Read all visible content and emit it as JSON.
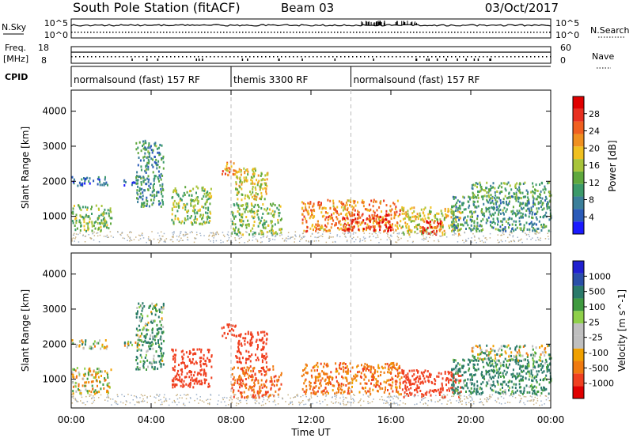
{
  "header": {
    "station": "South Pole Station (fitACF)",
    "beam": "Beam 03",
    "date": "03/Oct/2017"
  },
  "panels": {
    "nsky_label": "N.Sky",
    "nsearch_label": "N.Search",
    "nsky_ticks": [
      "10^5",
      "10^0"
    ],
    "freq_label": "Freq.",
    "freq_unit": "[MHz]",
    "freq_ticks": [
      "18",
      "8"
    ],
    "nave_label": "Nave",
    "nave_ticks": [
      "60",
      "0"
    ],
    "cpid_label": "CPID",
    "cpid_segments": [
      {
        "label": "normalsound (fast) 157 RF",
        "start_h": 0,
        "end_h": 8
      },
      {
        "label": "themis 3300 RF",
        "start_h": 8,
        "end_h": 14
      },
      {
        "label": "normalsound (fast) 157 RF",
        "start_h": 14,
        "end_h": 24
      }
    ]
  },
  "colors": {
    "power": [
      "#1a1aff",
      "#2a5ab8",
      "#3b7f9a",
      "#3c9a6a",
      "#5fa83e",
      "#a8c43a",
      "#f0c020",
      "#f09020",
      "#f06020",
      "#e83020",
      "#e00000"
    ],
    "velocity": [
      "#e00000",
      "#f04020",
      "#f07a10",
      "#f0a000",
      "#bfbfbf",
      "#bfbfbf",
      "#8fd04a",
      "#3f9a3f",
      "#2a7a6a",
      "#2a4fa8",
      "#2020d0"
    ]
  },
  "chart_data": [
    {
      "type": "heatmap",
      "title": "Power",
      "xlabel": "",
      "ylabel": "Slant Range [km]",
      "xlim": [
        0,
        24
      ],
      "ylim": [
        180,
        4600
      ],
      "yticks": [
        1000,
        2000,
        3000,
        4000
      ],
      "colorbar": {
        "label": "Power [dB]",
        "range": [
          0,
          32
        ],
        "ticks": [
          "4",
          "8",
          "12",
          "16",
          "20",
          "24",
          "28"
        ]
      },
      "regions": [
        {
          "t0": 0.0,
          "t1": 2.0,
          "r0": 600,
          "r1": 1350,
          "v": 14
        },
        {
          "t0": 0.0,
          "t1": 1.8,
          "r0": 1900,
          "r1": 2150,
          "v": 6
        },
        {
          "t0": 2.6,
          "t1": 3.4,
          "r0": 1900,
          "r1": 2100,
          "v": 6
        },
        {
          "t0": 3.2,
          "t1": 4.6,
          "r0": 1300,
          "r1": 3200,
          "v": 10
        },
        {
          "t0": 5.0,
          "t1": 7.0,
          "r0": 800,
          "r1": 1900,
          "v": 14
        },
        {
          "t0": 7.5,
          "t1": 8.2,
          "r0": 2200,
          "r1": 2600,
          "v": 22
        },
        {
          "t0": 8.2,
          "t1": 9.8,
          "r0": 1500,
          "r1": 2400,
          "v": 18
        },
        {
          "t0": 8.0,
          "t1": 10.5,
          "r0": 500,
          "r1": 1400,
          "v": 14
        },
        {
          "t0": 11.5,
          "t1": 16.5,
          "r0": 600,
          "r1": 1500,
          "v": 22
        },
        {
          "t0": 13.5,
          "t1": 16.0,
          "r0": 600,
          "r1": 1100,
          "v": 28
        },
        {
          "t0": 16.5,
          "t1": 19.5,
          "r0": 500,
          "r1": 1300,
          "v": 18
        },
        {
          "t0": 17.5,
          "t1": 18.5,
          "r0": 500,
          "r1": 900,
          "v": 26
        },
        {
          "t0": 19.0,
          "t1": 24.0,
          "r0": 600,
          "r1": 1600,
          "v": 10
        },
        {
          "t0": 20.0,
          "t1": 24.0,
          "r0": 1550,
          "r1": 2000,
          "v": 12
        }
      ]
    },
    {
      "type": "heatmap",
      "title": "Velocity",
      "xlabel": "Time UT",
      "ylabel": "Slant Range [km]",
      "xlim": [
        0,
        24
      ],
      "ylim": [
        180,
        4600
      ],
      "yticks": [
        1000,
        2000,
        3000,
        4000
      ],
      "xticks": [
        "00:00",
        "04:00",
        "08:00",
        "12:00",
        "16:00",
        "20:00",
        "00:00"
      ],
      "colorbar": {
        "label": "Velocity [m s^-1]",
        "ticks": [
          "1000",
          "500",
          "100",
          "25",
          "-25",
          "-100",
          "-500",
          "-1000"
        ]
      },
      "regions": [
        {
          "t0": 0.0,
          "t1": 2.0,
          "r0": 600,
          "r1": 1350,
          "v": -50
        },
        {
          "t0": 0.0,
          "t1": 1.8,
          "r0": 1900,
          "r1": 2150,
          "v": 0
        },
        {
          "t0": 2.6,
          "t1": 3.4,
          "r0": 1900,
          "r1": 2100,
          "v": 0
        },
        {
          "t0": 3.2,
          "t1": 4.6,
          "r0": 1300,
          "r1": 3200,
          "v": 100
        },
        {
          "t0": 5.0,
          "t1": 7.0,
          "r0": 800,
          "r1": 1900,
          "v": -500
        },
        {
          "t0": 7.5,
          "t1": 8.2,
          "r0": 2200,
          "r1": 2600,
          "v": -500
        },
        {
          "t0": 8.2,
          "t1": 9.8,
          "r0": 1500,
          "r1": 2400,
          "v": -600
        },
        {
          "t0": 8.0,
          "t1": 10.5,
          "r0": 500,
          "r1": 1400,
          "v": -300
        },
        {
          "t0": 11.5,
          "t1": 16.5,
          "r0": 600,
          "r1": 1500,
          "v": -200
        },
        {
          "t0": 16.5,
          "t1": 19.5,
          "r0": 500,
          "r1": 1300,
          "v": -500
        },
        {
          "t0": 19.0,
          "t1": 24.0,
          "r0": 600,
          "r1": 1600,
          "v": 150
        },
        {
          "t0": 20.0,
          "t1": 24.0,
          "r0": 1550,
          "r1": 2000,
          "v": 0
        }
      ]
    }
  ]
}
